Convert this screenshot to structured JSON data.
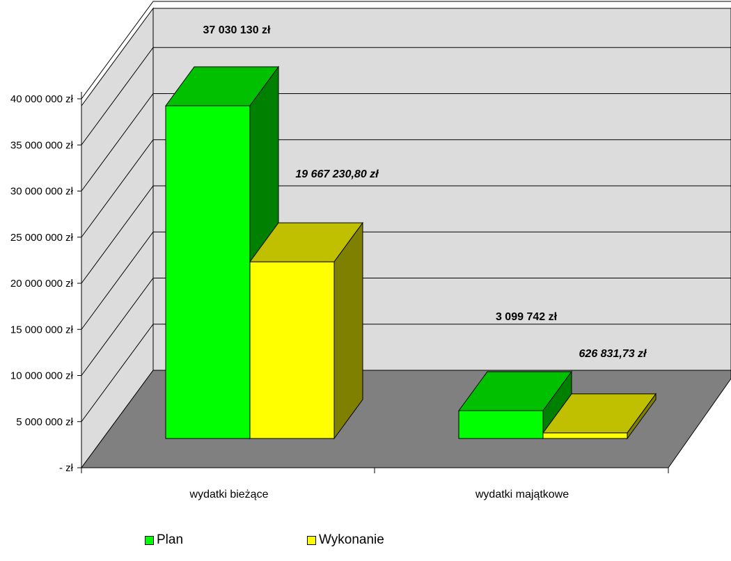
{
  "chart_data": {
    "type": "bar",
    "categories": [
      "wydatki bieżące",
      "wydatki majątkowe"
    ],
    "series": [
      {
        "name": "Plan",
        "values": [
          37030130,
          3099742
        ],
        "labels": [
          "37 030 130 zł",
          "3 099 742 zł"
        ],
        "color": "#00ff00",
        "top_color": "#00c000",
        "side_color": "#008000",
        "label_italic": false
      },
      {
        "name": "Wykonanie",
        "values": [
          19667230.8,
          626831.73
        ],
        "labels": [
          "19 667 230,80 zł",
          "626 831,73 zł"
        ],
        "color": "#ffff00",
        "top_color": "#c0c000",
        "side_color": "#808000",
        "label_italic": true
      }
    ],
    "ylim": [
      0,
      40000000
    ],
    "yticks": [
      0,
      5000000,
      10000000,
      15000000,
      20000000,
      25000000,
      30000000,
      35000000,
      40000000
    ],
    "ytick_labels": [
      "-   zł",
      "5 000 000 zł",
      "10 000 000 zł",
      "15 000 000 zł",
      "20 000 000 zł",
      "25 000 000 zł",
      "30 000 000 zł",
      "35 000 000 zł",
      "40 000 000 zł"
    ],
    "title": "",
    "xlabel": "",
    "ylabel": "",
    "grid": true,
    "legend_position": "bottom",
    "three_d": true,
    "wall_color": "#dcdcdc",
    "floor_color": "#808080"
  }
}
